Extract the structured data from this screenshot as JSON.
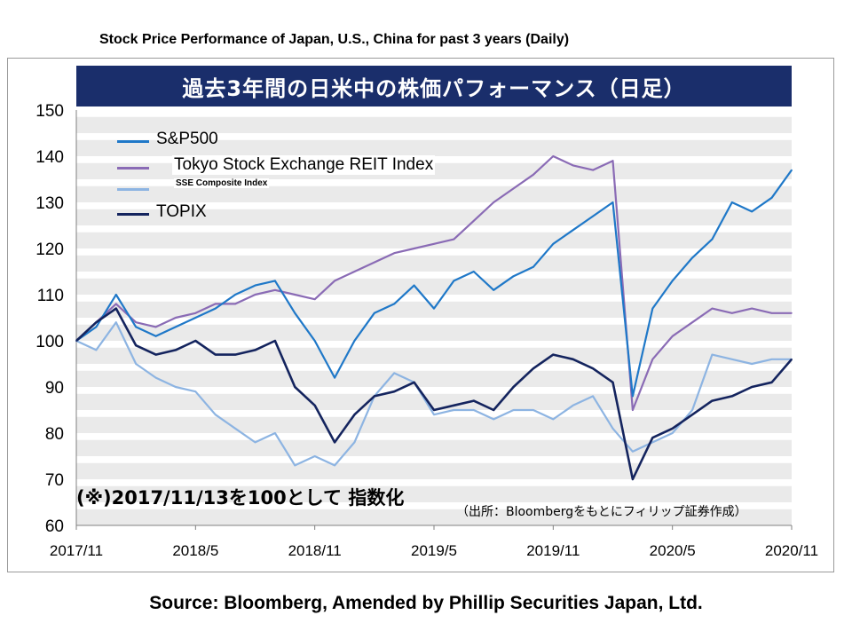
{
  "page": {
    "top_title": "Stock Price Performance of Japan, U.S., China for past 3 years (Daily)",
    "banner_title": "過去3年間の日米中の株価パフォーマンス（日足）",
    "source": "Source: Bloomberg, Amended by Phillip Securities Japan, Ltd.",
    "note_index": "(※)2017/11/13を100として 指数化",
    "note_source": "（出所：Bloombergをもとにフィリップ証券作成）"
  },
  "colors": {
    "sp500": "#1f78c8",
    "reit": "#8a6bb5",
    "sse": "#8db4e2",
    "topix": "#14245e",
    "banner": "#1a2e6b",
    "grid": "#d9d9d9"
  },
  "chart_data": {
    "type": "line",
    "xlabel": "",
    "ylabel": "",
    "ylim": [
      60,
      150
    ],
    "yticks": [
      "150",
      "140",
      "130",
      "120",
      "110",
      "100",
      "90",
      "80",
      "70",
      "60"
    ],
    "xticks": [
      "2017/11",
      "2018/5",
      "2018/11",
      "2019/5",
      "2019/11",
      "2020/5",
      "2020/11"
    ],
    "x": [
      "2017/11",
      "2017/12",
      "2018/1",
      "2018/2",
      "2018/3",
      "2018/4",
      "2018/5",
      "2018/6",
      "2018/7",
      "2018/8",
      "2018/9",
      "2018/10",
      "2018/11",
      "2018/12",
      "2019/1",
      "2019/2",
      "2019/3",
      "2019/4",
      "2019/5",
      "2019/6",
      "2019/7",
      "2019/8",
      "2019/9",
      "2019/10",
      "2019/11",
      "2019/12",
      "2020/1",
      "2020/2",
      "2020/3",
      "2020/4",
      "2020/5",
      "2020/6",
      "2020/7",
      "2020/8",
      "2020/9",
      "2020/10",
      "2020/11"
    ],
    "legend_position": "top-left",
    "series": [
      {
        "name": "S&P500",
        "key": "sp500",
        "values": [
          100,
          103,
          110,
          103,
          101,
          103,
          105,
          107,
          110,
          112,
          113,
          106,
          100,
          92,
          100,
          106,
          108,
          112,
          107,
          113,
          115,
          111,
          114,
          116,
          121,
          124,
          127,
          130,
          88,
          107,
          113,
          118,
          122,
          130,
          128,
          131,
          137
        ]
      },
      {
        "name": "Tokyo Stock Exchange REIT Index",
        "key": "reit",
        "values": [
          100,
          104,
          108,
          104,
          103,
          105,
          106,
          108,
          108,
          110,
          111,
          110,
          109,
          113,
          115,
          117,
          119,
          120,
          121,
          122,
          126,
          130,
          133,
          136,
          140,
          138,
          137,
          139,
          85,
          96,
          101,
          104,
          107,
          106,
          107,
          106,
          106
        ]
      },
      {
        "name": "SSE Composite Index",
        "key": "sse",
        "values": [
          100,
          98,
          104,
          95,
          92,
          90,
          89,
          84,
          81,
          78,
          80,
          73,
          75,
          73,
          78,
          88,
          93,
          91,
          84,
          85,
          85,
          83,
          85,
          85,
          83,
          86,
          88,
          81,
          76,
          78,
          80,
          85,
          97,
          96,
          95,
          96,
          96
        ]
      },
      {
        "name": "TOPIX",
        "key": "topix",
        "values": [
          100,
          104,
          107,
          99,
          97,
          98,
          100,
          97,
          97,
          98,
          100,
          90,
          86,
          78,
          84,
          88,
          89,
          91,
          85,
          86,
          87,
          85,
          90,
          94,
          97,
          96,
          94,
          91,
          70,
          79,
          81,
          84,
          87,
          88,
          90,
          91,
          96
        ]
      }
    ]
  }
}
